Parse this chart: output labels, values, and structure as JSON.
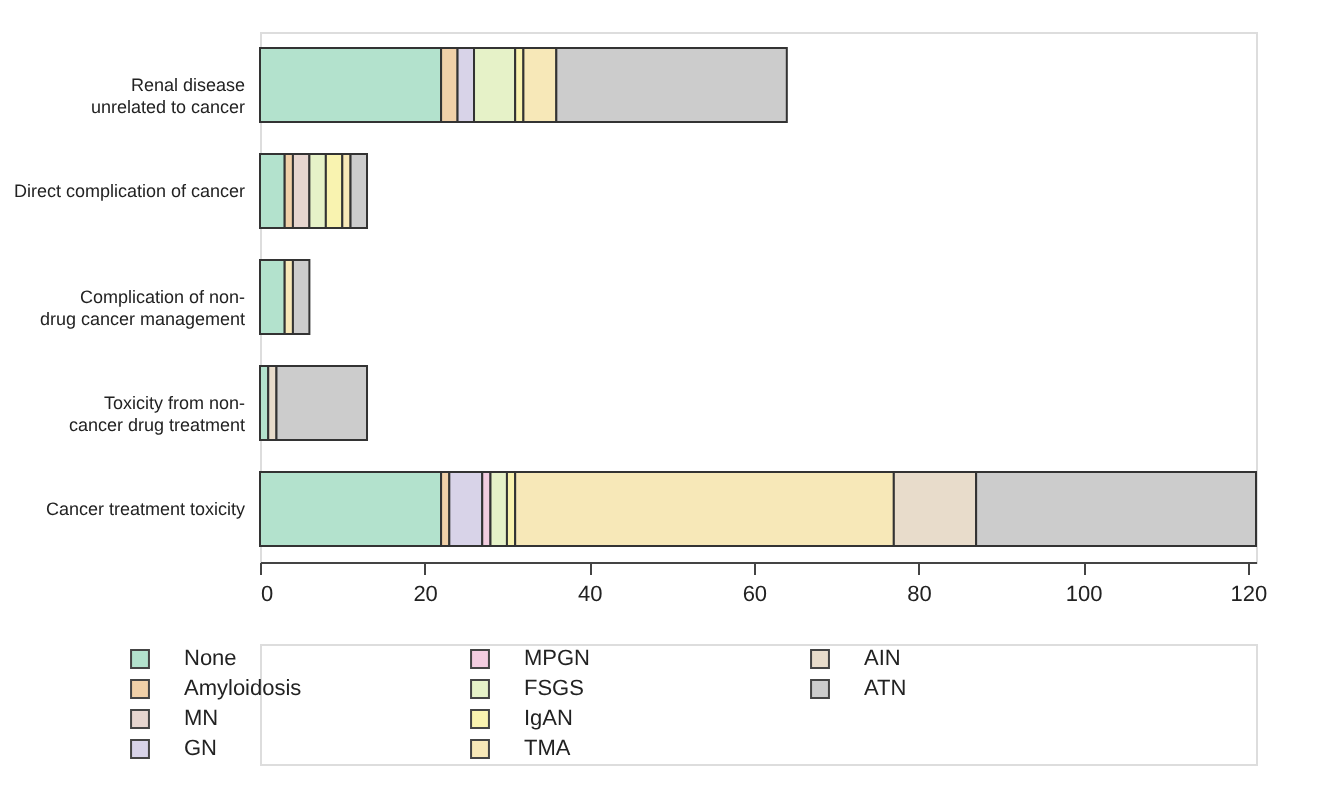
{
  "chart_data": {
    "type": "bar",
    "orientation": "horizontal",
    "stacked": true,
    "categories": [
      "Renal disease unrelated to cancer",
      "Direct complication of cancer",
      "Complication of non-drug cancer management",
      "Toxicity from non-cancer drug treatment",
      "Cancer treatment toxicity"
    ],
    "series": [
      {
        "name": "None",
        "color": "#b3e2cd",
        "values": [
          22,
          3,
          3,
          1,
          22
        ]
      },
      {
        "name": "Amyloidosis",
        "color": "#f0d0a8",
        "values": [
          2,
          1,
          null,
          null,
          1
        ]
      },
      {
        "name": "MN",
        "color": "#e6d5cf",
        "values": [
          null,
          2,
          null,
          null,
          null
        ]
      },
      {
        "name": "GN",
        "color": "#d8d3e8",
        "values": [
          2,
          null,
          null,
          null,
          4
        ]
      },
      {
        "name": "MPGN",
        "color": "#f3cde0",
        "values": [
          null,
          null,
          null,
          null,
          1
        ]
      },
      {
        "name": "FSGS",
        "color": "#e6f2c8",
        "values": [
          5,
          2,
          null,
          null,
          2
        ]
      },
      {
        "name": "IgAN",
        "color": "#f9f3b0",
        "values": [
          1,
          2,
          null,
          null,
          1
        ]
      },
      {
        "name": "TMA",
        "color": "#f7e8b8",
        "values": [
          4,
          1,
          1,
          null,
          46
        ]
      },
      {
        "name": "AIN",
        "color": "#e8dccb",
        "values": [
          null,
          null,
          null,
          1,
          10
        ]
      },
      {
        "name": "ATN",
        "color": "#cccccc",
        "values": [
          28,
          2,
          2,
          11,
          34
        ]
      }
    ],
    "xlim": [
      0,
      121
    ],
    "xticks": [
      0,
      20,
      40,
      60,
      80,
      100,
      120
    ],
    "grid": false,
    "legend": "bottom"
  }
}
